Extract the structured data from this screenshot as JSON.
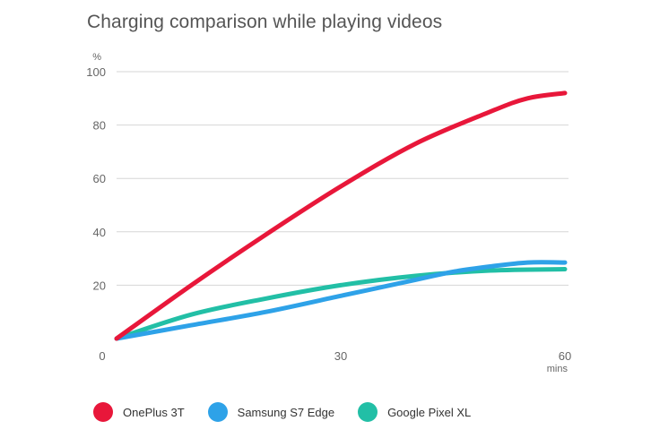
{
  "chart_data": {
    "type": "line",
    "title": "Charging comparison while playing videos",
    "y_unit": "%",
    "x_unit": "mins",
    "xlim": [
      0,
      60
    ],
    "ylim": [
      0,
      100
    ],
    "x_ticks": [
      0,
      30,
      60
    ],
    "y_ticks": [
      20,
      40,
      60,
      80,
      100
    ],
    "grid": "horizontal",
    "legend_position": "bottom",
    "series": [
      {
        "name": "OnePlus 3T",
        "color": "#e8173a",
        "x": [
          0,
          10,
          20,
          30,
          40,
          50,
          55,
          60
        ],
        "y": [
          0,
          20,
          39,
          57,
          73,
          85,
          90,
          92
        ]
      },
      {
        "name": "Samsung S7 Edge",
        "color": "#2ea2e8",
        "x": [
          0,
          10,
          20,
          30,
          40,
          45,
          50,
          55,
          60
        ],
        "y": [
          0,
          5,
          10,
          16,
          22,
          25,
          27,
          28.5,
          28.5
        ]
      },
      {
        "name": "Google Pixel XL",
        "color": "#22bfa6",
        "x": [
          0,
          10,
          20,
          30,
          40,
          50,
          60
        ],
        "y": [
          0,
          9,
          15,
          20,
          23.5,
          25.5,
          26
        ]
      }
    ]
  }
}
